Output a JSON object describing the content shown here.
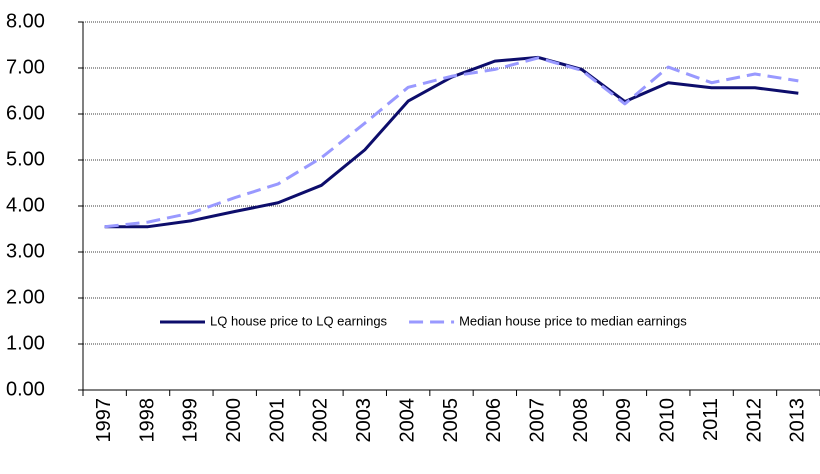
{
  "chart_data": {
    "type": "line",
    "categories": [
      "1997",
      "1998",
      "1999",
      "2000",
      "2001",
      "2002",
      "2003",
      "2004",
      "2005",
      "2006",
      "2007",
      "2008",
      "2009",
      "2010",
      "2011",
      "2012",
      "2013"
    ],
    "series": [
      {
        "name": "LQ house price to LQ earnings",
        "color": "#0d0d6b",
        "dash": false,
        "values": [
          3.55,
          3.55,
          3.68,
          3.88,
          4.07,
          4.45,
          5.22,
          6.28,
          6.8,
          7.15,
          7.23,
          6.97,
          6.27,
          6.68,
          6.57,
          6.57,
          6.45
        ]
      },
      {
        "name": "Median house price to median earnings",
        "color": "#9999ff",
        "dash": true,
        "values": [
          3.55,
          3.65,
          3.85,
          4.18,
          4.48,
          5.05,
          5.8,
          6.58,
          6.82,
          6.97,
          7.22,
          6.95,
          6.22,
          7.02,
          6.68,
          6.87,
          6.72
        ]
      }
    ],
    "ylim": [
      0,
      8
    ],
    "yticks": [
      {
        "value": 0,
        "label": "0.00"
      },
      {
        "value": 1,
        "label": "1.00"
      },
      {
        "value": 2,
        "label": "2.00"
      },
      {
        "value": 3,
        "label": "3.00"
      },
      {
        "value": 4,
        "label": "4.00"
      },
      {
        "value": 5,
        "label": "5.00"
      },
      {
        "value": 6,
        "label": "6.00"
      },
      {
        "value": 7,
        "label": "7.00"
      },
      {
        "value": 8,
        "label": "8.00"
      }
    ],
    "grid": true
  }
}
